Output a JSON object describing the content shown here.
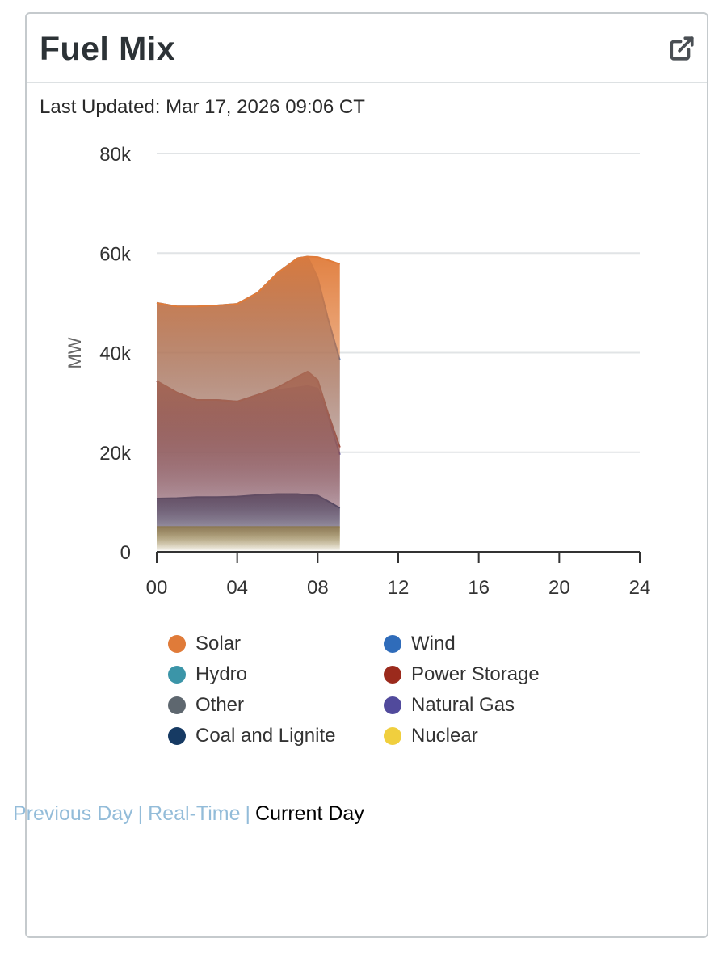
{
  "widget": {
    "title": "Fuel Mix",
    "last_updated": "Last Updated: Mar 17, 2026 09:06 CT",
    "popout_icon": "external-link-icon"
  },
  "nav": {
    "previous_day": "Previous Day",
    "real_time": "Real-Time",
    "current_day": "Current Day",
    "separator": "|"
  },
  "chart_data": {
    "type": "area",
    "title": "",
    "xlabel": "",
    "ylabel": "MW",
    "xlim": [
      0,
      24
    ],
    "ylim": [
      0,
      80000
    ],
    "x_ticks": [
      "00",
      "04",
      "08",
      "12",
      "16",
      "20",
      "24"
    ],
    "y_ticks": [
      "0",
      "20k",
      "40k",
      "60k",
      "80k"
    ],
    "x_hours": [
      0,
      1,
      2,
      3,
      4,
      5,
      6,
      7,
      7.5,
      8,
      8.5,
      9.1
    ],
    "series": [
      {
        "name": "Nuclear",
        "color": "#f0cf3e",
        "values": [
          5000,
          5000,
          5000,
          5000,
          5000,
          5000,
          5000,
          5000,
          5000,
          5000,
          5000,
          5000
        ]
      },
      {
        "name": "Coal and Lignite",
        "color": "#163a63",
        "values": [
          10700,
          10800,
          11000,
          11000,
          11100,
          11400,
          11600,
          11600,
          11400,
          11300,
          10200,
          8800
        ]
      },
      {
        "name": "Natural Gas",
        "color": "#514a9c",
        "values": [
          34300,
          32000,
          30500,
          30500,
          30200,
          31500,
          32500,
          33000,
          33300,
          32800,
          27500,
          19500
        ]
      },
      {
        "name": "Power Storage",
        "color": "#9b2a1c",
        "values": [
          34300,
          32000,
          30500,
          30500,
          30200,
          31500,
          33000,
          35200,
          36200,
          34500,
          28000,
          21000
        ]
      },
      {
        "name": "Wind",
        "color": "#2f6cba",
        "values": [
          50000,
          49300,
          49300,
          49500,
          49800,
          52000,
          56000,
          59000,
          59300,
          55000,
          47000,
          38500
        ]
      },
      {
        "name": "Solar",
        "color": "#e07b39",
        "values": [
          50000,
          49300,
          49300,
          49500,
          49800,
          52000,
          56000,
          59000,
          59300,
          59200,
          58600,
          57800
        ]
      }
    ],
    "legend": [
      {
        "label": "Solar",
        "color": "#e07b39"
      },
      {
        "label": "Wind",
        "color": "#2f6cba"
      },
      {
        "label": "Hydro",
        "color": "#3b95a8"
      },
      {
        "label": "Power Storage",
        "color": "#9b2a1c"
      },
      {
        "label": "Other",
        "color": "#5e676f"
      },
      {
        "label": "Natural Gas",
        "color": "#514a9c"
      },
      {
        "label": "Coal and Lignite",
        "color": "#163a63"
      },
      {
        "label": "Nuclear",
        "color": "#f0cf3e"
      }
    ]
  }
}
